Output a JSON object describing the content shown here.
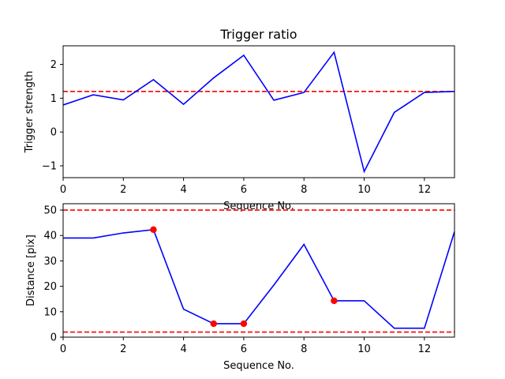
{
  "colors": {
    "line": "#0000ff",
    "threshold": "#ff0000",
    "marker": "#ff0000",
    "axes": "#000000"
  },
  "chart_data": [
    {
      "type": "line",
      "title": "Trigger ratio",
      "xlabel": "Sequence No.",
      "ylabel": "Trigger strength",
      "xlim": [
        0,
        13
      ],
      "ylim": [
        -1.35,
        2.55
      ],
      "grid": false,
      "x_ticks": [
        0,
        2,
        4,
        6,
        8,
        10,
        12
      ],
      "y_ticks": [
        -1,
        0,
        1,
        2
      ],
      "series": [
        {
          "x": [
            0,
            1,
            2,
            3,
            4,
            5,
            6,
            7,
            8,
            9,
            10,
            11,
            12,
            13
          ],
          "y": [
            0.8,
            1.1,
            0.95,
            1.55,
            0.82,
            1.6,
            2.27,
            0.94,
            1.17,
            2.36,
            -1.17,
            0.58,
            1.17,
            1.2
          ]
        }
      ],
      "thresholds": [
        1.2
      ]
    },
    {
      "type": "line",
      "title": "",
      "xlabel": "Sequence No.",
      "ylabel": "Distance [pix]",
      "xlim": [
        0,
        13
      ],
      "ylim": [
        0,
        52.5
      ],
      "grid": false,
      "x_ticks": [
        0,
        2,
        4,
        6,
        8,
        10,
        12
      ],
      "y_ticks": [
        0,
        10,
        20,
        30,
        40,
        50
      ],
      "series": [
        {
          "x": [
            0,
            1,
            2,
            3,
            4,
            5,
            6,
            7,
            8,
            9,
            10,
            11,
            12,
            13
          ],
          "y": [
            39.0,
            39.0,
            41.0,
            42.3,
            11.0,
            5.3,
            5.3,
            20.5,
            36.5,
            14.3,
            14.3,
            3.5,
            3.5,
            41.5
          ]
        }
      ],
      "markers": {
        "x": [
          3,
          5,
          6,
          9
        ],
        "y": [
          42.3,
          5.3,
          5.3,
          14.3
        ]
      },
      "thresholds": [
        50,
        2
      ]
    }
  ]
}
